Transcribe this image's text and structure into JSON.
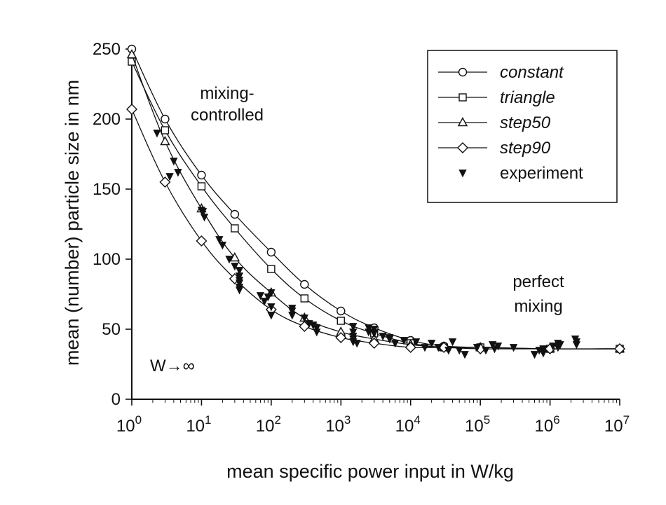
{
  "chart_data": {
    "type": "scatter",
    "title": "",
    "xlabel": "mean specific power input in W/kg",
    "ylabel": "mean (number) particle size in nm",
    "xscale": "log",
    "xlim": [
      1,
      10000000
    ],
    "ylim": [
      0,
      250
    ],
    "grid": false,
    "legend_position": "top-right",
    "x_ticks": [
      {
        "base": "10",
        "exp": "0"
      },
      {
        "base": "10",
        "exp": "1"
      },
      {
        "base": "10",
        "exp": "2"
      },
      {
        "base": "10",
        "exp": "3"
      },
      {
        "base": "10",
        "exp": "4"
      },
      {
        "base": "10",
        "exp": "5"
      },
      {
        "base": "10",
        "exp": "6"
      },
      {
        "base": "10",
        "exp": "7"
      }
    ],
    "y_ticks": [
      "0",
      "50",
      "100",
      "150",
      "200",
      "250"
    ],
    "annotations": {
      "mixing_line1": "mixing-",
      "mixing_line2": "controlled",
      "perfect_line1": "perfect",
      "perfect_line2": "mixing",
      "w_limit": "W→∞"
    },
    "series": [
      {
        "name": "constant",
        "marker": "circle",
        "line": true,
        "x": [
          1,
          3,
          10,
          30,
          100,
          300,
          1000,
          3000,
          10000,
          30000,
          100000,
          1000000,
          10000000
        ],
        "y": [
          250,
          200,
          160,
          132,
          105,
          82,
          63,
          51,
          42,
          38,
          37,
          36,
          36
        ]
      },
      {
        "name": "triangle",
        "marker": "square",
        "line": true,
        "x": [
          1,
          3,
          10,
          30,
          100,
          300,
          1000,
          3000,
          10000,
          30000,
          100000,
          1000000,
          10000000
        ],
        "y": [
          241,
          192,
          152,
          122,
          93,
          72,
          56,
          47,
          40,
          37,
          37,
          36,
          36
        ]
      },
      {
        "name": "step50",
        "marker": "triangle",
        "line": true,
        "x": [
          1,
          3,
          10,
          30,
          100,
          300,
          1000,
          3000,
          10000,
          30000,
          100000,
          1000000,
          10000000
        ],
        "y": [
          246,
          184,
          136,
          101,
          76,
          58,
          48,
          43,
          39,
          37,
          37,
          36,
          36
        ]
      },
      {
        "name": "step90",
        "marker": "diamond",
        "line": true,
        "x": [
          1,
          3,
          10,
          30,
          100,
          300,
          1000,
          3000,
          10000,
          30000,
          100000,
          1000000,
          10000000
        ],
        "y": [
          207,
          155,
          113,
          86,
          64,
          52,
          44,
          40,
          37,
          37,
          36,
          36,
          36
        ]
      },
      {
        "name": "experiment",
        "marker": "filled-down-triangle",
        "line": false,
        "x": [
          2.3,
          3.5,
          4,
          4.6,
          10,
          10.5,
          11,
          18,
          20,
          25,
          30,
          35,
          35,
          35,
          35,
          35,
          35,
          70,
          80,
          90,
          100,
          100,
          100,
          200,
          200,
          200,
          300,
          350,
          400,
          450,
          450,
          1500,
          1500,
          1500,
          1500,
          1500,
          1700,
          2500,
          2500,
          3000,
          3000,
          4000,
          5000,
          5000,
          6000,
          8000,
          12000,
          16000,
          20000,
          25000,
          35000,
          40000,
          50000,
          60000,
          90000,
          120000,
          150000,
          160000,
          180000,
          300000,
          600000,
          700000,
          800000,
          800000,
          1100000,
          1300000,
          1300000,
          1400000,
          2300000,
          2400000,
          2400000
        ],
        "y": [
          190,
          159,
          170,
          162,
          135,
          134,
          130,
          114,
          110,
          100,
          95,
          92,
          88,
          85,
          83,
          80,
          78,
          74,
          70,
          73,
          76,
          66,
          60,
          65,
          63,
          60,
          58,
          54,
          53,
          51,
          48,
          52,
          48,
          45,
          43,
          41,
          40,
          51,
          48,
          50,
          47,
          45,
          43,
          44,
          40,
          42,
          41,
          37,
          40,
          37,
          35,
          41,
          35,
          32,
          37,
          35,
          39,
          36,
          38,
          37,
          32,
          35,
          33,
          36,
          38,
          40,
          37,
          39,
          43,
          39,
          41
        ]
      }
    ]
  }
}
